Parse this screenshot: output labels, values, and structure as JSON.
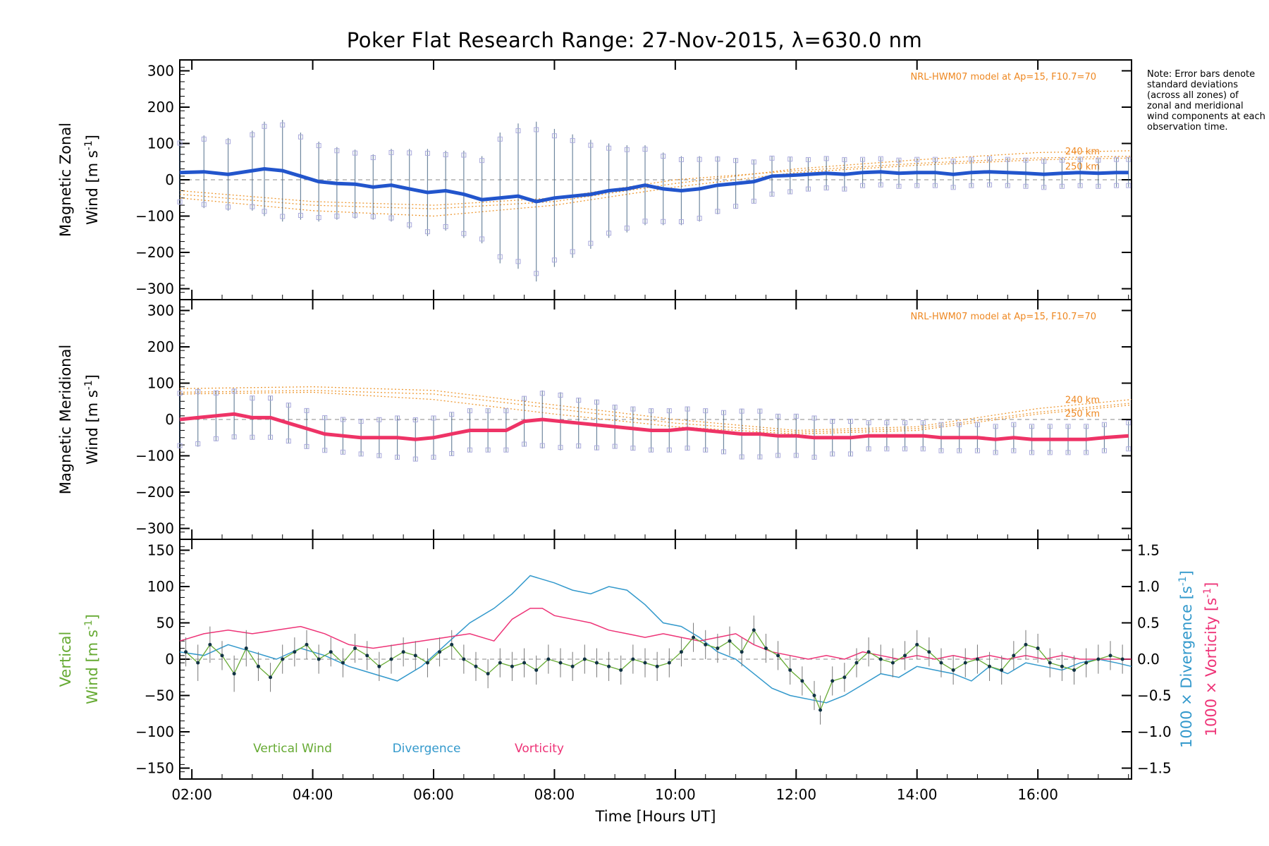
{
  "figure": {
    "title": "Poker Flat Research Range: 27-Nov-2015, λ=630.0 nm",
    "note": "Note: Error bars denote standard deviations (across all zones) of zonal and meridional wind components at each observation time.",
    "x_axis_label": "Time [Hours UT]"
  },
  "chart_data": [
    {
      "id": "zonal",
      "type": "line",
      "ylabel_line1": "Magnetic Zonal",
      "ylabel_line2": "Wind [m s",
      "ylabel_sup": "-1",
      "ylabel_close": "]",
      "model_label": "NRL-HWM07 model at Ap=15, F10.7=70",
      "alt_labels": [
        "240 km",
        "250 km"
      ],
      "ylim": [
        -330,
        330
      ],
      "yticks": [
        -300,
        -200,
        -100,
        0,
        100,
        200,
        300
      ],
      "yticklabels": [
        "−300",
        "−200",
        "−100",
        "0",
        "100",
        "200",
        "300"
      ],
      "xlim": [
        1.8,
        17.55
      ],
      "color": "#2255cc",
      "series": [
        {
          "x": [
            1.8,
            2.2,
            2.6,
            3.0,
            3.2,
            3.5,
            3.8,
            4.1,
            4.4,
            4.7,
            5.0,
            5.3,
            5.6,
            5.9,
            6.2,
            6.5,
            6.8,
            7.1,
            7.4,
            7.7,
            8.0,
            8.3,
            8.6,
            8.9,
            9.2,
            9.5,
            9.8,
            10.1,
            10.4,
            10.7,
            11.0,
            11.3,
            11.6,
            11.9,
            12.2,
            12.5,
            12.8,
            13.1,
            13.4,
            13.7,
            14.0,
            14.3,
            14.6,
            14.9,
            15.2,
            15.5,
            15.8,
            16.1,
            16.4,
            16.7,
            17.0,
            17.3,
            17.5
          ],
          "y": [
            20,
            22,
            15,
            25,
            30,
            25,
            10,
            -5,
            -10,
            -12,
            -20,
            -15,
            -25,
            -35,
            -30,
            -40,
            -55,
            -50,
            -45,
            -60,
            -50,
            -45,
            -40,
            -30,
            -25,
            -15,
            -25,
            -30,
            -25,
            -15,
            -10,
            -5,
            10,
            12,
            15,
            18,
            15,
            20,
            22,
            18,
            20,
            20,
            15,
            20,
            22,
            20,
            18,
            15,
            18,
            20,
            18,
            20,
            20
          ],
          "err": [
            90,
            100,
            100,
            110,
            130,
            140,
            120,
            110,
            100,
            95,
            90,
            100,
            110,
            120,
            110,
            120,
            120,
            180,
            200,
            220,
            190,
            170,
            150,
            130,
            120,
            110,
            100,
            95,
            90,
            80,
            70,
            60,
            55,
            50,
            45,
            45,
            45,
            40,
            40,
            40,
            40,
            40,
            40,
            40,
            40,
            40,
            40,
            40,
            40,
            40,
            40,
            40,
            40
          ]
        }
      ],
      "models": [
        {
          "x": [
            1.8,
            4,
            6,
            8,
            10,
            12,
            14,
            16,
            17.55
          ],
          "y": [
            -40,
            -70,
            -80,
            -60,
            -10,
            30,
            55,
            75,
            80
          ]
        },
        {
          "x": [
            1.8,
            4,
            6,
            8,
            10,
            12,
            14,
            16,
            17.55
          ],
          "y": [
            -30,
            -60,
            -70,
            -50,
            0,
            25,
            45,
            60,
            65
          ]
        },
        {
          "x": [
            1.8,
            4,
            6,
            8,
            10,
            12,
            14,
            16,
            17.55
          ],
          "y": [
            -50,
            -85,
            -100,
            -70,
            -20,
            20,
            40,
            55,
            60
          ]
        }
      ]
    },
    {
      "id": "meridional",
      "type": "line",
      "ylabel_line1": "Magnetic Meridional",
      "ylabel_line2": "Wind [m s",
      "ylabel_sup": "-1",
      "ylabel_close": "]",
      "model_label": "NRL-HWM07 model at Ap=15, F10.7=70",
      "alt_labels": [
        "240 km",
        "250 km"
      ],
      "ylim": [
        -330,
        330
      ],
      "yticks": [
        -300,
        -200,
        -100,
        0,
        100,
        200,
        300
      ],
      "yticklabels": [
        "−300",
        "−200",
        "−100",
        "0",
        "100",
        "200",
        "300"
      ],
      "xlim": [
        1.8,
        17.55
      ],
      "color": "#ee3366",
      "series": [
        {
          "x": [
            1.8,
            2.1,
            2.4,
            2.7,
            3.0,
            3.3,
            3.6,
            3.9,
            4.2,
            4.5,
            4.8,
            5.1,
            5.4,
            5.7,
            6.0,
            6.3,
            6.6,
            6.9,
            7.2,
            7.5,
            7.8,
            8.1,
            8.4,
            8.7,
            9.0,
            9.3,
            9.6,
            9.9,
            10.2,
            10.5,
            10.8,
            11.1,
            11.4,
            11.7,
            12.0,
            12.3,
            12.6,
            12.9,
            13.2,
            13.5,
            13.8,
            14.1,
            14.4,
            14.7,
            15.0,
            15.3,
            15.6,
            15.9,
            16.2,
            16.5,
            16.8,
            17.1,
            17.5
          ],
          "y": [
            0,
            5,
            10,
            15,
            5,
            5,
            -10,
            -25,
            -40,
            -45,
            -50,
            -50,
            -50,
            -55,
            -50,
            -40,
            -30,
            -30,
            -30,
            -5,
            0,
            -5,
            -10,
            -15,
            -20,
            -25,
            -30,
            -30,
            -25,
            -30,
            -35,
            -40,
            -40,
            -45,
            -45,
            -50,
            -50,
            -50,
            -45,
            -45,
            -45,
            -45,
            -50,
            -50,
            -50,
            -55,
            -50,
            -55,
            -55,
            -55,
            -55,
            -50,
            -45
          ],
          "err": [
            80,
            80,
            70,
            70,
            60,
            60,
            55,
            55,
            50,
            50,
            50,
            55,
            60,
            60,
            60,
            60,
            60,
            60,
            60,
            70,
            80,
            80,
            70,
            70,
            60,
            60,
            60,
            60,
            60,
            60,
            60,
            70,
            70,
            60,
            60,
            60,
            50,
            50,
            40,
            40,
            40,
            40,
            40,
            40,
            40,
            40,
            40,
            40,
            40,
            40,
            40,
            40,
            40
          ]
        }
      ],
      "models": [
        {
          "x": [
            1.8,
            4,
            6,
            8,
            10,
            12,
            14,
            16,
            17.55
          ],
          "y": [
            85,
            90,
            80,
            40,
            0,
            -30,
            -20,
            30,
            55
          ]
        },
        {
          "x": [
            1.8,
            4,
            6,
            8,
            10,
            12,
            14,
            16,
            17.55
          ],
          "y": [
            75,
            80,
            70,
            30,
            -10,
            -35,
            -25,
            20,
            45
          ]
        },
        {
          "x": [
            1.8,
            4,
            6,
            8,
            10,
            12,
            14,
            16,
            17.55
          ],
          "y": [
            70,
            75,
            55,
            15,
            -20,
            -40,
            -30,
            15,
            40
          ]
        }
      ]
    },
    {
      "id": "vertical",
      "type": "line",
      "ylabel_line1": "Vertical",
      "ylabel_line2": "Wind [m s",
      "ylabel_sup": "-1",
      "ylabel_close": "]",
      "ylim": [
        -165,
        165
      ],
      "yticks": [
        -150,
        -100,
        -50,
        0,
        50,
        100,
        150
      ],
      "yticklabels": [
        "−150",
        "−100",
        "−50",
        "0",
        "50",
        "100",
        "150"
      ],
      "y2lim": [
        -1.65,
        1.65
      ],
      "y2ticks": [
        -1.5,
        -1.0,
        -0.5,
        0.0,
        0.5,
        1.0,
        1.5
      ],
      "y2ticklabels": [
        "−1.5",
        "−1.0",
        "−0.5",
        "0.0",
        "0.5",
        "1.0",
        "1.5"
      ],
      "y2label_div": "1000 × Divergence [s",
      "y2label_vor": "1000 × Vorticity [s",
      "y2label_sup": "-1",
      "y2label_close": "]",
      "xlim": [
        1.8,
        17.55
      ],
      "xticks": [
        2,
        4,
        6,
        8,
        10,
        12,
        14,
        16
      ],
      "xticklabels": [
        "02:00",
        "04:00",
        "06:00",
        "08:00",
        "10:00",
        "12:00",
        "14:00",
        "16:00"
      ],
      "legend": [
        "Vertical Wind",
        "Divergence",
        "Vorticity"
      ],
      "colors": {
        "vertical": "#66aa33",
        "divergence": "#3399cc",
        "vorticity": "#ee3377"
      },
      "series": [
        {
          "name": "Vertical Wind",
          "x": [
            1.9,
            2.1,
            2.3,
            2.5,
            2.7,
            2.9,
            3.1,
            3.3,
            3.5,
            3.7,
            3.9,
            4.1,
            4.3,
            4.5,
            4.7,
            4.9,
            5.1,
            5.3,
            5.5,
            5.7,
            5.9,
            6.1,
            6.3,
            6.5,
            6.7,
            6.9,
            7.1,
            7.3,
            7.5,
            7.7,
            7.9,
            8.1,
            8.3,
            8.5,
            8.7,
            8.9,
            9.1,
            9.3,
            9.5,
            9.7,
            9.9,
            10.1,
            10.3,
            10.5,
            10.7,
            10.9,
            11.1,
            11.3,
            11.5,
            11.7,
            11.9,
            12.1,
            12.3,
            12.4,
            12.6,
            12.8,
            13.0,
            13.2,
            13.4,
            13.6,
            13.8,
            14.0,
            14.2,
            14.4,
            14.6,
            14.8,
            15.0,
            15.2,
            15.4,
            15.6,
            15.8,
            16.0,
            16.2,
            16.4,
            16.6,
            16.8,
            17.0,
            17.2,
            17.4
          ],
          "y": [
            10,
            -5,
            20,
            5,
            -20,
            15,
            -10,
            -25,
            0,
            10,
            20,
            0,
            10,
            -5,
            15,
            5,
            -10,
            0,
            10,
            5,
            -5,
            10,
            20,
            0,
            -10,
            -20,
            -5,
            -10,
            -5,
            -15,
            0,
            -5,
            -10,
            0,
            -5,
            -10,
            -15,
            0,
            -5,
            -10,
            -5,
            10,
            30,
            20,
            15,
            25,
            10,
            40,
            15,
            5,
            -15,
            -30,
            -50,
            -70,
            -30,
            -25,
            -5,
            10,
            0,
            -5,
            5,
            20,
            10,
            -5,
            -15,
            -5,
            0,
            -10,
            -15,
            5,
            20,
            15,
            -5,
            -10,
            -15,
            -5,
            0,
            5,
            0
          ],
          "err": [
            20,
            25,
            25,
            20,
            25,
            25,
            20,
            20,
            20,
            20,
            20,
            20,
            20,
            20,
            20,
            20,
            20,
            20,
            20,
            20,
            20,
            20,
            20,
            20,
            20,
            20,
            20,
            20,
            20,
            20,
            20,
            20,
            20,
            20,
            20,
            20,
            20,
            20,
            20,
            20,
            20,
            20,
            20,
            20,
            20,
            20,
            20,
            20,
            20,
            20,
            20,
            20,
            20,
            20,
            20,
            20,
            20,
            20,
            20,
            20,
            20,
            20,
            20,
            20,
            20,
            20,
            20,
            20,
            20,
            20,
            20,
            20,
            20,
            20,
            20,
            20,
            20,
            20,
            20
          ]
        },
        {
          "name": "Divergence",
          "x": [
            1.8,
            2.2,
            2.6,
            3.0,
            3.4,
            3.8,
            4.2,
            4.6,
            5.0,
            5.4,
            5.8,
            6.2,
            6.6,
            7.0,
            7.3,
            7.6,
            7.8,
            8.0,
            8.3,
            8.6,
            8.9,
            9.2,
            9.5,
            9.8,
            10.1,
            10.4,
            10.7,
            11.0,
            11.3,
            11.6,
            11.9,
            12.2,
            12.5,
            12.8,
            13.1,
            13.4,
            13.7,
            14.0,
            14.3,
            14.6,
            14.9,
            15.2,
            15.5,
            15.8,
            16.1,
            16.4,
            16.7,
            17.0,
            17.3,
            17.55
          ],
          "y": [
            0.1,
            0.05,
            0.2,
            0.1,
            0.0,
            0.15,
            0.05,
            -0.1,
            -0.2,
            -0.3,
            -0.1,
            0.2,
            0.5,
            0.7,
            0.9,
            1.15,
            1.1,
            1.05,
            0.95,
            0.9,
            1.0,
            0.95,
            0.75,
            0.5,
            0.45,
            0.3,
            0.1,
            0.0,
            -0.2,
            -0.4,
            -0.5,
            -0.55,
            -0.6,
            -0.5,
            -0.35,
            -0.2,
            -0.25,
            -0.1,
            -0.15,
            -0.2,
            -0.3,
            -0.1,
            -0.2,
            -0.05,
            -0.1,
            -0.15,
            -0.05,
            0.0,
            -0.05,
            -0.1
          ]
        },
        {
          "name": "Vorticity",
          "x": [
            1.8,
            2.2,
            2.6,
            3.0,
            3.4,
            3.8,
            4.2,
            4.6,
            5.0,
            5.4,
            5.8,
            6.2,
            6.6,
            7.0,
            7.3,
            7.6,
            7.8,
            8.0,
            8.3,
            8.6,
            8.9,
            9.2,
            9.5,
            9.8,
            10.1,
            10.4,
            10.7,
            11.0,
            11.3,
            11.6,
            11.9,
            12.2,
            12.5,
            12.8,
            13.1,
            13.4,
            13.7,
            14.0,
            14.3,
            14.6,
            14.9,
            15.2,
            15.5,
            15.8,
            16.1,
            16.4,
            16.7,
            17.0,
            17.3,
            17.55
          ],
          "y": [
            0.25,
            0.35,
            0.4,
            0.35,
            0.4,
            0.45,
            0.35,
            0.2,
            0.15,
            0.2,
            0.25,
            0.3,
            0.35,
            0.25,
            0.55,
            0.7,
            0.7,
            0.6,
            0.55,
            0.5,
            0.4,
            0.35,
            0.3,
            0.35,
            0.3,
            0.25,
            0.3,
            0.35,
            0.2,
            0.1,
            0.05,
            0.0,
            0.05,
            0.0,
            0.1,
            0.05,
            0.0,
            0.05,
            0.0,
            0.05,
            0.0,
            0.05,
            0.0,
            0.05,
            0.0,
            0.05,
            0.0,
            0.0,
            0.0,
            0.0
          ]
        }
      ]
    }
  ]
}
